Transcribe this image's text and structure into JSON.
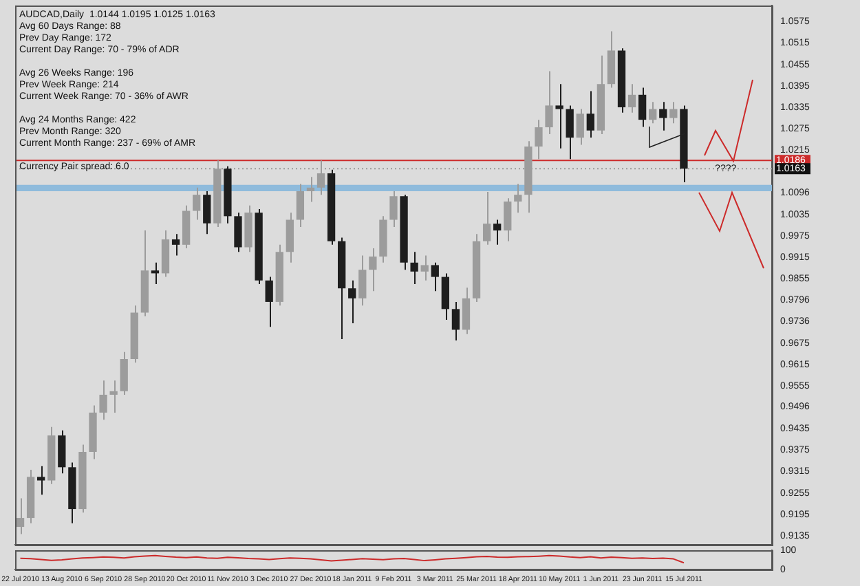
{
  "chart_data": [
    {
      "type": "candlestick",
      "title": "AUDCAD,Daily  1.0144 1.0195 1.0125 1.0163",
      "annotations": [
        "Avg 60 Days Range: 88",
        "Prev Day Range: 172",
        "Current Day Range: 70 - 79% of ADR",
        "Avg 26 Weeks Range: 196",
        "Prev Week Range: 214",
        "Current Week Range: 70 - 36% of AWR",
        "Avg 24 Months Range: 422",
        "Prev Month Range: 320",
        "Current Month Range: 237 - 69% of AMR",
        "Currency Pair spread: 6.0",
        {
          "text": "????",
          "y": 1.0163
        }
      ],
      "categories": [
        "22 Jul 2010",
        null,
        null,
        null,
        "13 Aug 2010",
        null,
        null,
        null,
        "6 Sep 2010",
        null,
        null,
        null,
        "28 Sep 2010",
        null,
        null,
        null,
        "20 Oct 2010",
        null,
        null,
        null,
        "11 Nov 2010",
        null,
        null,
        null,
        "3 Dec 2010",
        null,
        null,
        null,
        "27 Dec 2010",
        null,
        null,
        null,
        "18 Jan 2011",
        null,
        null,
        null,
        "9 Feb 2011",
        null,
        null,
        null,
        "3 Mar 2011",
        null,
        null,
        null,
        "25 Mar 2011",
        null,
        null,
        null,
        "18 Apr 2011",
        null,
        null,
        null,
        "10 May 2011",
        null,
        null,
        null,
        "1 Jun 2011",
        null,
        null,
        null,
        "23 Jun 2011",
        null,
        null,
        null,
        "15 Jul 2011",
        null,
        null,
        null,
        null,
        null,
        null,
        null,
        null
      ],
      "ohlc": [
        [
          0.916,
          0.924,
          0.914,
          0.9185
        ],
        [
          0.9185,
          0.932,
          0.917,
          0.93
        ],
        [
          0.93,
          0.933,
          0.925,
          0.929
        ],
        [
          0.929,
          0.944,
          0.928,
          0.9416
        ],
        [
          0.9416,
          0.943,
          0.931,
          0.9327
        ],
        [
          0.9327,
          0.934,
          0.917,
          0.921
        ],
        [
          0.921,
          0.939,
          0.92,
          0.937
        ],
        [
          0.937,
          0.95,
          0.935,
          0.948
        ],
        [
          0.948,
          0.957,
          0.946,
          0.953
        ],
        [
          0.953,
          0.957,
          0.948,
          0.954
        ],
        [
          0.954,
          0.965,
          0.953,
          0.963
        ],
        [
          0.963,
          0.978,
          0.962,
          0.976
        ],
        [
          0.976,
          0.999,
          0.975,
          0.9878
        ],
        [
          0.9878,
          0.99,
          0.984,
          0.987
        ],
        [
          0.987,
          0.999,
          0.986,
          0.9965
        ],
        [
          0.9965,
          0.998,
          0.992,
          0.995
        ],
        [
          0.995,
          1.006,
          0.994,
          1.0045
        ],
        [
          1.0045,
          1.011,
          1.002,
          1.009
        ],
        [
          1.009,
          1.01,
          0.998,
          1.001
        ],
        [
          1.001,
          1.0186,
          1.0,
          1.0163
        ],
        [
          1.0163,
          1.017,
          1.001,
          1.003
        ],
        [
          1.003,
          1.004,
          0.993,
          0.9943
        ],
        [
          0.9943,
          1.006,
          0.993,
          1.004
        ],
        [
          1.004,
          1.005,
          0.984,
          0.985
        ],
        [
          0.985,
          0.986,
          0.972,
          0.979
        ],
        [
          0.979,
          0.995,
          0.978,
          0.993
        ],
        [
          0.993,
          1.004,
          0.99,
          1.002
        ],
        [
          1.002,
          1.012,
          1.0,
          1.01
        ],
        [
          1.01,
          1.014,
          1.007,
          1.011
        ],
        [
          1.011,
          1.0186,
          1.009,
          1.015
        ],
        [
          1.015,
          1.016,
          0.995,
          0.996
        ],
        [
          0.996,
          0.997,
          0.9686,
          0.9828
        ],
        [
          0.9828,
          0.985,
          0.973,
          0.98
        ],
        [
          0.98,
          0.992,
          0.978,
          0.988
        ],
        [
          0.988,
          0.994,
          0.982,
          0.9917
        ],
        [
          0.9917,
          1.003,
          0.99,
          1.002
        ],
        [
          1.002,
          1.01,
          1.0,
          1.0086
        ],
        [
          1.0086,
          1.009,
          0.988,
          0.99
        ],
        [
          0.99,
          0.993,
          0.984,
          0.9875
        ],
        [
          0.9875,
          0.992,
          0.985,
          0.9893
        ],
        [
          0.9893,
          0.99,
          0.982,
          0.986
        ],
        [
          0.986,
          0.987,
          0.974,
          0.977
        ],
        [
          0.977,
          0.979,
          0.9682,
          0.9712
        ],
        [
          0.9712,
          0.983,
          0.97,
          0.98
        ],
        [
          0.98,
          0.998,
          0.979,
          0.996
        ],
        [
          0.996,
          1.0098,
          0.995,
          1.0009
        ],
        [
          1.0009,
          1.002,
          0.995,
          0.999
        ],
        [
          0.999,
          1.008,
          0.996,
          1.0071
        ],
        [
          1.0071,
          1.012,
          1.004,
          1.009
        ],
        [
          1.009,
          1.024,
          1.004,
          1.0225
        ],
        [
          1.0225,
          1.03,
          1.019,
          1.0279
        ],
        [
          1.0279,
          1.0436,
          1.026,
          1.034
        ],
        [
          1.034,
          1.04,
          1.022,
          1.033
        ],
        [
          1.033,
          1.034,
          1.019,
          1.025
        ],
        [
          1.025,
          1.033,
          1.023,
          1.0317
        ],
        [
          1.0317,
          1.038,
          1.025,
          1.027
        ],
        [
          1.027,
          1.048,
          1.026,
          1.04
        ],
        [
          1.04,
          1.0548,
          1.039,
          1.0494
        ],
        [
          1.0494,
          1.05,
          1.032,
          1.0335
        ],
        [
          1.0335,
          1.04,
          1.032,
          1.037
        ],
        [
          1.037,
          1.039,
          1.028,
          1.03
        ],
        [
          1.03,
          1.035,
          1.029,
          1.033
        ],
        [
          1.033,
          1.035,
          1.027,
          1.0305
        ],
        [
          1.0305,
          1.035,
          1.029,
          1.033
        ],
        [
          1.033,
          1.034,
          1.0125,
          1.0163
        ],
        null,
        null,
        null,
        null,
        null,
        null,
        null,
        null
      ],
      "colors": [
        "#9c9c9c",
        "#9c9c9c",
        "#1e1e1e",
        "#9c9c9c",
        "#1e1e1e",
        "#1e1e1e",
        "#9c9c9c",
        "#9c9c9c",
        "#9c9c9c",
        "#9c9c9c",
        "#9c9c9c",
        "#9c9c9c",
        "#9c9c9c",
        "#1e1e1e",
        "#9c9c9c",
        "#1e1e1e",
        "#9c9c9c",
        "#9c9c9c",
        "#1e1e1e",
        "#9c9c9c",
        "#1e1e1e",
        "#1e1e1e",
        "#9c9c9c",
        "#1e1e1e",
        "#1e1e1e",
        "#9c9c9c",
        "#9c9c9c",
        "#9c9c9c",
        "#9c9c9c",
        "#9c9c9c",
        "#1e1e1e",
        "#1e1e1e",
        "#1e1e1e",
        "#9c9c9c",
        "#9c9c9c",
        "#9c9c9c",
        "#9c9c9c",
        "#1e1e1e",
        "#1e1e1e",
        "#9c9c9c",
        "#1e1e1e",
        "#1e1e1e",
        "#1e1e1e",
        "#9c9c9c",
        "#9c9c9c",
        "#9c9c9c",
        "#1e1e1e",
        "#9c9c9c",
        "#9c9c9c",
        "#9c9c9c",
        "#9c9c9c",
        "#9c9c9c",
        "#1e1e1e",
        "#1e1e1e",
        "#9c9c9c",
        "#1e1e1e",
        "#9c9c9c",
        "#9c9c9c",
        "#1e1e1e",
        "#9c9c9c",
        "#1e1e1e",
        "#9c9c9c",
        "#1e1e1e",
        "#9c9c9c",
        "#1e1e1e",
        null,
        null,
        null,
        null,
        null,
        null,
        null,
        null
      ],
      "ylim": [
        0.911,
        1.062
      ],
      "yticks": [
        0.9135,
        0.9195,
        0.9255,
        0.9315,
        0.9375,
        0.9435,
        0.9496,
        0.9555,
        0.9615,
        0.9675,
        0.9736,
        0.9796,
        0.9855,
        0.9915,
        0.9975,
        1.0035,
        1.0096,
        1.0215,
        1.0275,
        1.0335,
        1.0395,
        1.0455,
        1.0515,
        1.0575
      ],
      "ref_lines": [
        {
          "axis": "y",
          "value": 1.0186,
          "label": "1.0186",
          "color": "#cc2b2b",
          "line_style": "solid"
        },
        {
          "axis": "y",
          "value": 1.0163,
          "label": "1.0163",
          "color": "#9a9a9a",
          "line_style": "dotted"
        }
      ],
      "bands": [
        {
          "axis": "y",
          "from": 1.01,
          "to": 1.0118,
          "color": "#8fbbdc"
        }
      ]
    },
    {
      "type": "line",
      "categories": [
        null,
        null,
        null,
        null,
        null,
        null,
        null,
        null,
        null,
        null,
        null,
        null,
        null,
        null,
        null,
        null,
        null,
        null,
        null,
        null,
        null,
        null,
        null,
        null,
        null,
        null,
        null,
        null,
        null,
        null,
        null,
        null,
        null,
        null,
        null,
        null,
        null,
        null,
        null,
        null,
        null,
        null,
        null,
        null,
        null,
        null,
        null,
        null,
        null,
        null,
        null,
        null,
        null,
        null,
        null,
        null,
        null,
        null,
        null,
        null,
        null,
        null,
        null,
        null,
        null,
        null,
        null,
        null,
        null,
        null,
        null,
        null,
        null
      ],
      "tick_labels": "y",
      "values": [
        58,
        56,
        52,
        47,
        50,
        55,
        60,
        62,
        65,
        63,
        60,
        66,
        70,
        72,
        68,
        64,
        62,
        65,
        60,
        58,
        63,
        61,
        57,
        55,
        52,
        56,
        60,
        58,
        55,
        50,
        45,
        48,
        52,
        56,
        54,
        51,
        55,
        57,
        52,
        46,
        50,
        55,
        58,
        62,
        66,
        68,
        64,
        63,
        66,
        67,
        69,
        72,
        70,
        65,
        62,
        66,
        60,
        64,
        62,
        58,
        60,
        57,
        59,
        55,
        35,
        null,
        null,
        null,
        null,
        null,
        null,
        null,
        null
      ],
      "color": "#cc2b2b",
      "ylim": [
        0,
        100
      ],
      "yticks": [
        0,
        100
      ]
    }
  ]
}
